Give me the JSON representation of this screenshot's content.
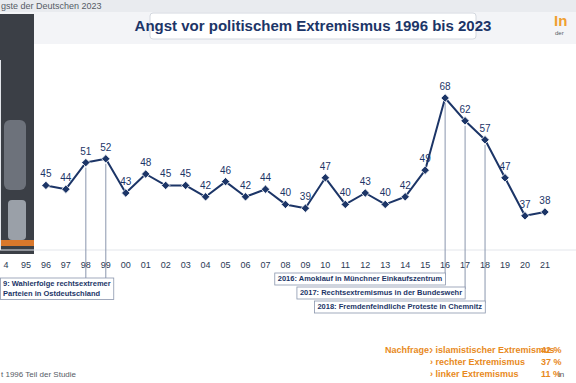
{
  "chart_data": {
    "type": "line",
    "title": "Angst vor politischem Extremismus 1996 bis 2023",
    "header": "gste der Deutschen 2023",
    "logo_text": [
      "In",
      "der"
    ],
    "categories": [
      "4",
      "95",
      "96",
      "97",
      "98",
      "99",
      "00",
      "01",
      "02",
      "03",
      "04",
      "05",
      "06",
      "07",
      "08",
      "09",
      "10",
      "11",
      "12",
      "13",
      "14",
      "15",
      "16",
      "17",
      "18",
      "19",
      "20",
      "21"
    ],
    "values": [
      null,
      null,
      45,
      44,
      51,
      52,
      43,
      48,
      45,
      45,
      42,
      46,
      42,
      44,
      40,
      39,
      47,
      40,
      43,
      40,
      42,
      49,
      68,
      62,
      57,
      47,
      37,
      38
    ],
    "color": "#1c3567",
    "marker": "diamond",
    "ylim": [
      28,
      78
    ],
    "tick_labels": "x",
    "data_labels": true,
    "grid": false,
    "annotations": [
      {
        "lines": [
          "9: Wahlerfolge rechtsextremer",
          "Parteien in Ostdeutschland"
        ],
        "categories": [
          "98",
          "99"
        ]
      },
      {
        "lines": [
          "2016: Amoklauf in Münchner Einkaufszentrum"
        ],
        "categories": [
          "16"
        ]
      },
      {
        "lines": [
          "2017: Rechtsextremismus in der Bundeswehr"
        ],
        "categories": [
          "17"
        ]
      },
      {
        "lines": [
          "2018: Fremdenfeindliche Proteste in Chemnitz"
        ],
        "categories": [
          "18"
        ]
      }
    ],
    "nachfrage": {
      "title": "Nachfrage:",
      "items": [
        {
          "label": "› islamistischer Extremismus",
          "value": 42,
          "value_label": "42 %"
        },
        {
          "label": "› rechter Extremismus",
          "value": 37,
          "value_label": "37 %"
        },
        {
          "label": "› linker Extremismus",
          "value": 11,
          "value_label": "11 %"
        }
      ]
    },
    "footnote": "t 1996 Teil der Studie",
    "corner_text": "in"
  }
}
